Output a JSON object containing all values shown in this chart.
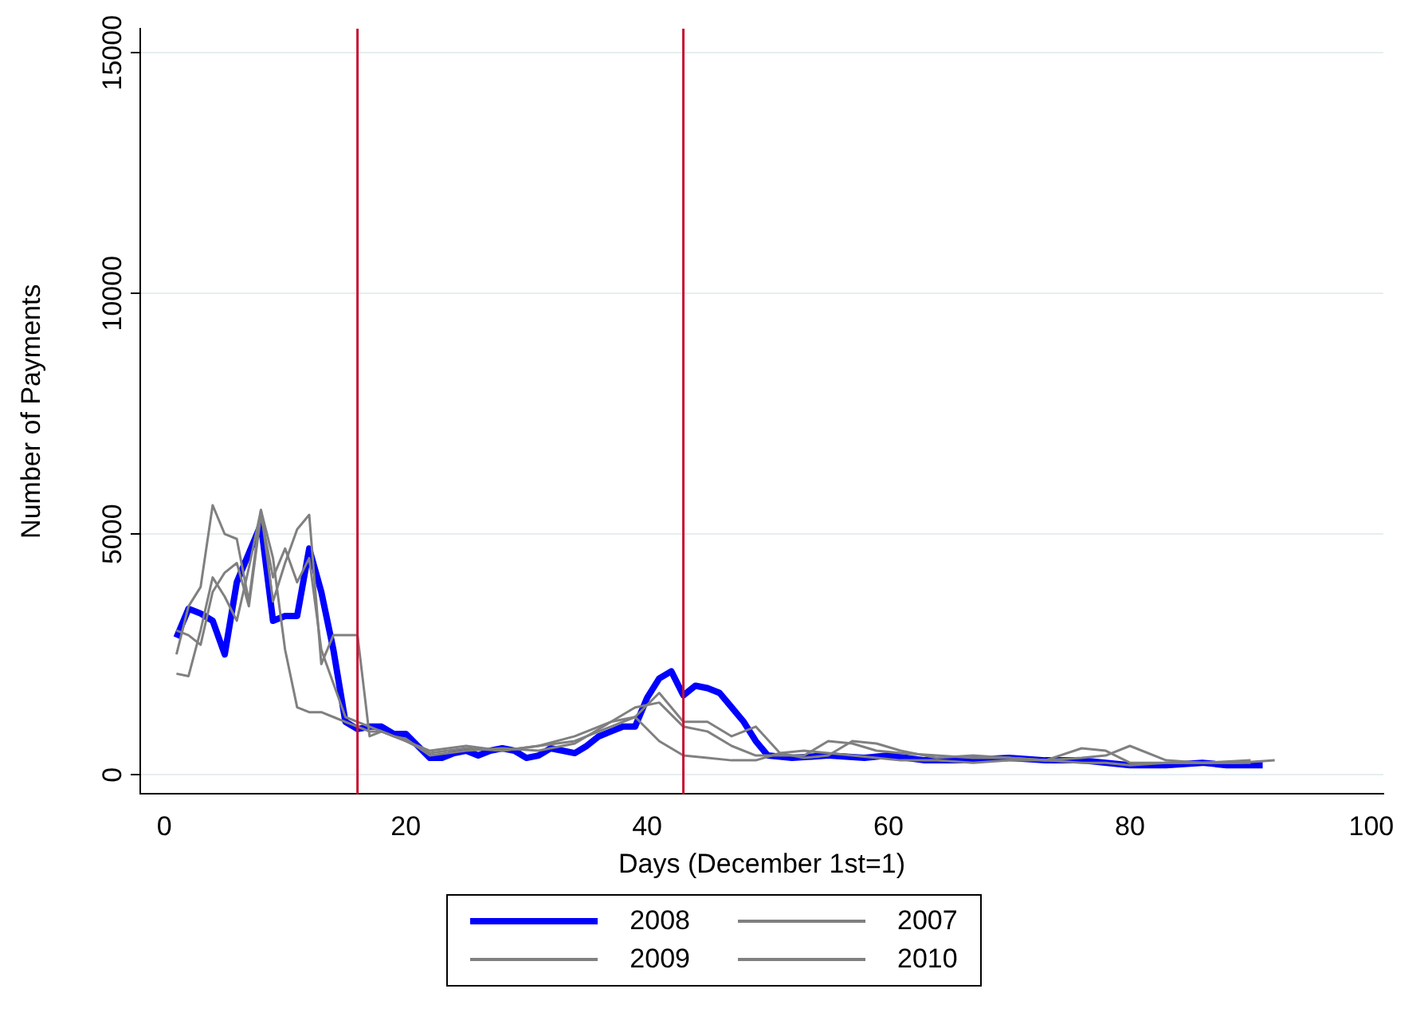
{
  "chart_data": {
    "type": "line",
    "xlabel": "Days (December 1st=1)",
    "ylabel": "Number of Payments",
    "xlim": [
      -2,
      101
    ],
    "xticks": [
      0,
      20,
      40,
      60,
      80,
      100
    ],
    "ylim": [
      -400,
      15500
    ],
    "yticks": [
      0,
      5000,
      10000,
      15000
    ],
    "grid": "y",
    "legend": "bottom",
    "marker": "none",
    "line_style": "solid",
    "ref_lines": [
      {
        "axis": "x",
        "value": 16,
        "color": "#c8102e"
      },
      {
        "axis": "x",
        "value": 43,
        "color": "#c8102e"
      }
    ],
    "series": [
      {
        "name": "2008",
        "color": "#0000ff",
        "x": [
          1,
          2,
          3,
          4,
          5,
          6,
          7,
          8,
          9,
          10,
          11,
          12,
          13,
          14,
          15,
          16,
          17,
          18,
          19,
          20,
          21,
          22,
          23,
          24,
          25,
          26,
          27,
          28,
          29,
          30,
          31,
          32,
          33,
          34,
          35,
          36,
          37,
          38,
          39,
          40,
          41,
          42,
          43,
          44,
          45,
          46,
          47,
          48,
          49,
          50,
          52,
          55,
          58,
          60,
          63,
          66,
          70,
          73,
          76,
          80,
          83,
          86,
          88,
          91
        ],
        "values": [
          2850,
          3450,
          3350,
          3200,
          2500,
          4000,
          4600,
          5200,
          3200,
          3300,
          3300,
          4700,
          3800,
          2600,
          1100,
          950,
          1000,
          1000,
          850,
          850,
          600,
          350,
          350,
          450,
          500,
          400,
          500,
          550,
          500,
          350,
          400,
          550,
          500,
          450,
          600,
          800,
          900,
          1000,
          1000,
          1600,
          2000,
          2150,
          1650,
          1850,
          1800,
          1700,
          1400,
          1100,
          700,
          400,
          350,
          400,
          350,
          400,
          300,
          300,
          350,
          300,
          300,
          200,
          200,
          250,
          200,
          200
        ]
      },
      {
        "name": "2007",
        "color": "#808080",
        "x": [
          1,
          2,
          3,
          4,
          5,
          6,
          7,
          8,
          9,
          10,
          11,
          12,
          13,
          14,
          15,
          16,
          17,
          18,
          19,
          20,
          22,
          25,
          28,
          31,
          34,
          37,
          39,
          41,
          43,
          45,
          47,
          49,
          51,
          53,
          55,
          57,
          59,
          61,
          64,
          67,
          70,
          73,
          76,
          78,
          80,
          83,
          86,
          90
        ],
        "values": [
          2500,
          3500,
          3900,
          5600,
          5000,
          4900,
          3600,
          5500,
          3600,
          4400,
          5100,
          5400,
          2300,
          2900,
          2900,
          2900,
          800,
          900,
          800,
          700,
          450,
          550,
          500,
          600,
          700,
          1000,
          1200,
          1700,
          1100,
          1100,
          800,
          1000,
          450,
          350,
          400,
          700,
          650,
          500,
          350,
          400,
          350,
          300,
          550,
          500,
          250,
          250,
          250,
          300
        ]
      },
      {
        "name": "2009",
        "color": "#808080",
        "x": [
          1,
          2,
          3,
          4,
          5,
          6,
          7,
          8,
          9,
          10,
          11,
          12,
          13,
          14,
          15,
          16,
          17,
          18,
          19,
          20,
          22,
          25,
          28,
          31,
          34,
          37,
          39,
          41,
          43,
          45,
          47,
          49,
          51,
          53,
          55,
          57,
          59,
          61,
          64,
          67,
          70,
          73,
          76,
          78,
          80,
          83,
          86,
          90
        ],
        "values": [
          2100,
          2050,
          3000,
          4100,
          3700,
          3200,
          4300,
          5500,
          4500,
          2600,
          1400,
          1300,
          1300,
          1200,
          1100,
          1000,
          900,
          900,
          800,
          750,
          400,
          500,
          550,
          500,
          650,
          1100,
          1200,
          700,
          400,
          350,
          300,
          300,
          450,
          500,
          450,
          400,
          350,
          300,
          300,
          250,
          300,
          300,
          250,
          250,
          200,
          250,
          250,
          250
        ]
      },
      {
        "name": "2010",
        "color": "#808080",
        "x": [
          1,
          2,
          3,
          4,
          5,
          6,
          7,
          8,
          9,
          10,
          11,
          12,
          13,
          14,
          15,
          16,
          17,
          18,
          19,
          20,
          22,
          25,
          28,
          31,
          34,
          37,
          39,
          41,
          43,
          45,
          47,
          49,
          51,
          53,
          55,
          57,
          59,
          61,
          64,
          67,
          70,
          73,
          76,
          78,
          80,
          83,
          86,
          89,
          92
        ],
        "values": [
          3000,
          2900,
          2700,
          3800,
          4200,
          4400,
          3500,
          5400,
          4100,
          4700,
          4000,
          4500,
          2600,
          1900,
          1200,
          1100,
          1000,
          900,
          800,
          700,
          500,
          600,
          500,
          600,
          800,
          1100,
          1400,
          1500,
          1000,
          900,
          600,
          400,
          400,
          400,
          700,
          650,
          500,
          450,
          400,
          350,
          350,
          300,
          350,
          400,
          600,
          300,
          250,
          250,
          300
        ]
      }
    ]
  }
}
